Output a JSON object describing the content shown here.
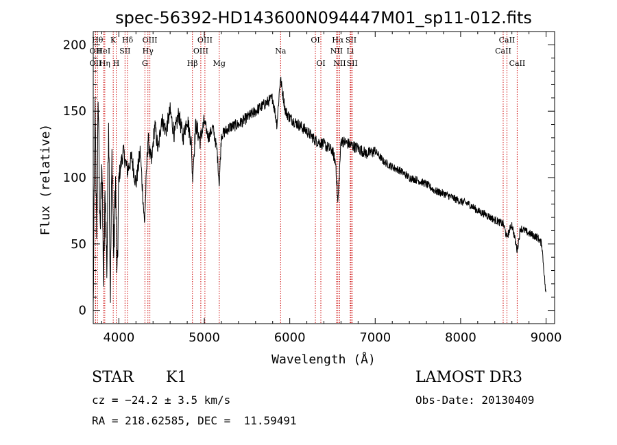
{
  "chart_data": {
    "type": "line",
    "title": "spec-56392-HD143600N094447M01_sp11-012.fits",
    "xlabel": "Wavelength (Å)",
    "ylabel": "Flux (relative)",
    "xlim": [
      3700,
      9100
    ],
    "ylim": [
      -10,
      210
    ],
    "xticks": [
      4000,
      5000,
      6000,
      7000,
      8000,
      9000
    ],
    "yticks": [
      0,
      50,
      100,
      150,
      200
    ],
    "grid": false,
    "line_color": "#000000",
    "marker_color": "#cc0000",
    "series": [
      {
        "name": "flux",
        "x": [
          3700,
          3720,
          3740,
          3760,
          3780,
          3800,
          3820,
          3840,
          3860,
          3880,
          3900,
          3920,
          3940,
          3960,
          3980,
          4000,
          4050,
          4100,
          4150,
          4200,
          4250,
          4300,
          4340,
          4380,
          4420,
          4460,
          4500,
          4550,
          4600,
          4650,
          4700,
          4750,
          4800,
          4850,
          4861,
          4900,
          4950,
          5000,
          5050,
          5100,
          5150,
          5175,
          5200,
          5300,
          5400,
          5500,
          5600,
          5700,
          5800,
          5850,
          5890,
          5950,
          6000,
          6100,
          6200,
          6300,
          6400,
          6500,
          6540,
          6563,
          6600,
          6700,
          6800,
          6900,
          7000,
          7100,
          7200,
          7300,
          7400,
          7500,
          7600,
          7700,
          7800,
          7900,
          8000,
          8100,
          8200,
          8300,
          8400,
          8500,
          8542,
          8600,
          8662,
          8700,
          8800,
          8900,
          8950,
          9000
        ],
        "values": [
          0,
          150,
          60,
          160,
          50,
          120,
          20,
          90,
          30,
          150,
          10,
          120,
          40,
          100,
          20,
          100,
          120,
          105,
          115,
          95,
          120,
          65,
          130,
          110,
          140,
          120,
          145,
          135,
          150,
          132,
          148,
          130,
          145,
          125,
          100,
          140,
          128,
          142,
          130,
          138,
          120,
          95,
          132,
          138,
          140,
          145,
          150,
          155,
          160,
          140,
          175,
          150,
          145,
          140,
          135,
          128,
          125,
          120,
          110,
          80,
          128,
          125,
          122,
          118,
          120,
          112,
          108,
          105,
          100,
          98,
          95,
          90,
          88,
          85,
          82,
          80,
          75,
          72,
          68,
          65,
          55,
          65,
          45,
          62,
          58,
          55,
          50,
          10
        ]
      }
    ],
    "markers": [
      {
        "label": "OII",
        "wavelength": 3727,
        "row": 2
      },
      {
        "label": "Hθ",
        "wavelength": 3750,
        "row": 1
      },
      {
        "label": "OII",
        "wavelength": 3727,
        "row": 3
      },
      {
        "label": "Hη",
        "wavelength": 3835,
        "row": 3
      },
      {
        "label": "HeI",
        "wavelength": 3820,
        "row": 2
      },
      {
        "label": "K",
        "wavelength": 3934,
        "row": 1
      },
      {
        "label": "H",
        "wavelength": 3969,
        "row": 3
      },
      {
        "label": "SII",
        "wavelength": 4072,
        "row": 2
      },
      {
        "label": "Hδ",
        "wavelength": 4102,
        "row": 1
      },
      {
        "label": "OIII",
        "wavelength": 4363,
        "row": 1
      },
      {
        "label": "Hγ",
        "wavelength": 4340,
        "row": 2
      },
      {
        "label": "G",
        "wavelength": 4305,
        "row": 3
      },
      {
        "label": "Hβ",
        "wavelength": 4861,
        "row": 3
      },
      {
        "label": "OIII",
        "wavelength": 5007,
        "row": 1
      },
      {
        "label": "OIII",
        "wavelength": 4959,
        "row": 2
      },
      {
        "label": "Mg",
        "wavelength": 5175,
        "row": 3
      },
      {
        "label": "Na",
        "wavelength": 5893,
        "row": 2
      },
      {
        "label": "OI",
        "wavelength": 6300,
        "row": 1
      },
      {
        "label": "OI",
        "wavelength": 6364,
        "row": 3
      },
      {
        "label": "Hα",
        "wavelength": 6563,
        "row": 1
      },
      {
        "label": "NII",
        "wavelength": 6548,
        "row": 2
      },
      {
        "label": "NII",
        "wavelength": 6584,
        "row": 3
      },
      {
        "label": "SII",
        "wavelength": 6717,
        "row": 1
      },
      {
        "label": "Li",
        "wavelength": 6708,
        "row": 2
      },
      {
        "label": "SII",
        "wavelength": 6731,
        "row": 3
      },
      {
        "label": "CaII",
        "wavelength": 8542,
        "row": 1
      },
      {
        "label": "CaII",
        "wavelength": 8498,
        "row": 2
      },
      {
        "label": "CaII",
        "wavelength": 8662,
        "row": 3
      }
    ]
  },
  "info": {
    "class_label": "STAR",
    "subclass": "K1",
    "survey": "LAMOST DR3",
    "cz": "cz = −24.2 ± 3.5 km/s",
    "obs_date": "Obs-Date: 20130409",
    "coords": "RA = 218.62585, DEC =  11.59491"
  }
}
